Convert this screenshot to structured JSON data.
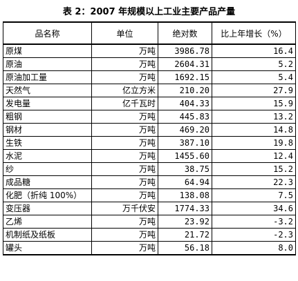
{
  "title": "表 2：2007 年规模以上工业主要产品产量",
  "table": {
    "headers": [
      "品名称",
      "单位",
      "绝对数",
      "比上年增长（%）"
    ],
    "rows": [
      {
        "name": "原煤",
        "unit": "万吨",
        "abs": "3986.78",
        "pct": "16.4"
      },
      {
        "name": "原油",
        "unit": "万吨",
        "abs": "2604.31",
        "pct": "5.2"
      },
      {
        "name": "原油加工量",
        "unit": "万吨",
        "abs": "1692.15",
        "pct": "5.4"
      },
      {
        "name": "天然气",
        "unit": "亿立方米",
        "abs": "210.20",
        "pct": "27.9"
      },
      {
        "name": "发电量",
        "unit": "亿千瓦时",
        "abs": "404.33",
        "pct": "15.9"
      },
      {
        "name": "粗钢",
        "unit": "万吨",
        "abs": "445.83",
        "pct": "13.2"
      },
      {
        "name": "钢材",
        "unit": "万吨",
        "abs": "469.20",
        "pct": "14.8"
      },
      {
        "name": "生铁",
        "unit": "万吨",
        "abs": "387.10",
        "pct": "19.8"
      },
      {
        "name": "水泥",
        "unit": "万吨",
        "abs": "1455.60",
        "pct": "12.4"
      },
      {
        "name": "纱",
        "unit": "万吨",
        "abs": "38.75",
        "pct": "15.2"
      },
      {
        "name": "成品糖",
        "unit": "万吨",
        "abs": "64.94",
        "pct": "22.3"
      },
      {
        "name": "化肥（折纯 100%）",
        "unit": "万吨",
        "abs": "138.08",
        "pct": "7.5"
      },
      {
        "name": "变压器",
        "unit": "万千伏安",
        "abs": "1774.33",
        "pct": "34.6"
      },
      {
        "name": "乙烯",
        "unit": "万吨",
        "abs": "23.92",
        "pct": "-3.2"
      },
      {
        "name": "机制纸及纸板",
        "unit": "万吨",
        "abs": "21.72",
        "pct": "-2.3"
      },
      {
        "name": "罐头",
        "unit": "万吨",
        "abs": "56.18",
        "pct": "8.0"
      }
    ]
  }
}
